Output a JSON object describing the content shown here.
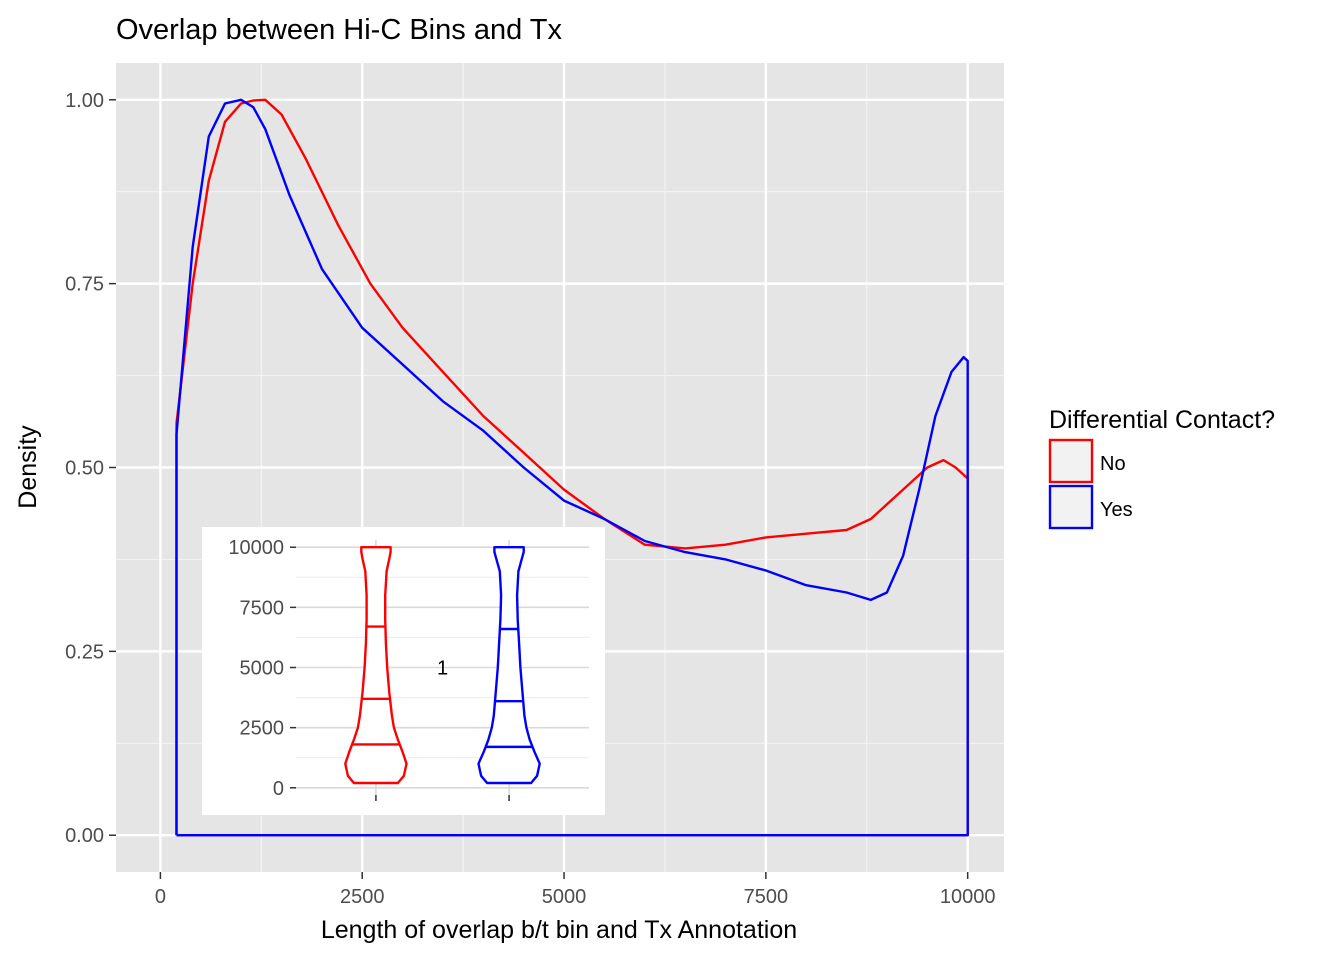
{
  "chart_data": [
    {
      "type": "line",
      "title": "Overlap between Hi-C Bins and Tx",
      "xlabel": "Length of overlap b/t bin and Tx Annotation",
      "ylabel": "Density",
      "xlim": [
        -550,
        10450
      ],
      "ylim": [
        -0.05,
        1.05
      ],
      "x_ticks": [
        0,
        2500,
        5000,
        7500,
        10000
      ],
      "x_tick_labels": [
        "0",
        "2500",
        "5000",
        "7500",
        "10000"
      ],
      "y_ticks": [
        0.0,
        0.25,
        0.5,
        0.75,
        1.0
      ],
      "y_tick_labels": [
        "0.00",
        "0.25",
        "0.50",
        "0.75",
        "1.00"
      ],
      "grid": true,
      "legend": {
        "title": "Differential Contact?",
        "position": "right",
        "entries": [
          {
            "label": "No",
            "color": "#ff0000"
          },
          {
            "label": "Yes",
            "color": "#0000ff"
          }
        ]
      },
      "series": [
        {
          "name": "No",
          "color": "#ff0000",
          "x": [
            200,
            200,
            400,
            600,
            800,
            1000,
            1150,
            1300,
            1500,
            1800,
            2200,
            2600,
            3000,
            3500,
            4000,
            4500,
            5000,
            5500,
            6000,
            6500,
            7000,
            7500,
            8000,
            8500,
            8800,
            9200,
            9500,
            9700,
            9850,
            10000,
            10000,
            200
          ],
          "y": [
            0.0,
            0.56,
            0.75,
            0.89,
            0.97,
            0.995,
            0.999,
            1.0,
            0.98,
            0.92,
            0.83,
            0.75,
            0.69,
            0.63,
            0.57,
            0.52,
            0.47,
            0.43,
            0.395,
            0.39,
            0.395,
            0.405,
            0.41,
            0.415,
            0.43,
            0.47,
            0.5,
            0.51,
            0.5,
            0.485,
            0.0,
            0.0
          ]
        },
        {
          "name": "Yes",
          "color": "#0000ff",
          "x": [
            200,
            200,
            400,
            600,
            800,
            1000,
            1150,
            1300,
            1600,
            2000,
            2500,
            3000,
            3500,
            4000,
            4500,
            5000,
            5500,
            6000,
            6500,
            7000,
            7500,
            8000,
            8500,
            8800,
            9000,
            9200,
            9400,
            9600,
            9800,
            9950,
            10000,
            10000,
            200
          ],
          "y": [
            0.0,
            0.545,
            0.8,
            0.95,
            0.995,
            1.0,
            0.99,
            0.96,
            0.87,
            0.77,
            0.69,
            0.64,
            0.59,
            0.55,
            0.5,
            0.455,
            0.43,
            0.4,
            0.385,
            0.375,
            0.36,
            0.34,
            0.33,
            0.32,
            0.33,
            0.38,
            0.47,
            0.57,
            0.63,
            0.65,
            0.645,
            0.0,
            0.0
          ]
        }
      ]
    },
    {
      "type": "violin",
      "ylim": [
        -300,
        10300
      ],
      "y_ticks": [
        0,
        2500,
        5000,
        7500,
        10000
      ],
      "y_tick_labels": [
        "0",
        "2500",
        "5000",
        "7500",
        "10000"
      ],
      "center_label": "1",
      "violins": [
        {
          "name": "No",
          "color": "#ff0000",
          "y": [
            200,
            500,
            1000,
            1500,
            2000,
            2500,
            3000,
            4000,
            5000,
            6000,
            7000,
            8000,
            9000,
            9500,
            9800,
            10000
          ],
          "half_width": [
            0.33,
            0.42,
            0.46,
            0.4,
            0.33,
            0.27,
            0.24,
            0.2,
            0.17,
            0.15,
            0.14,
            0.14,
            0.16,
            0.2,
            0.22,
            0.22
          ],
          "quantiles": [
            1800,
            3700,
            6700
          ]
        },
        {
          "name": "Yes",
          "color": "#0000ff",
          "y": [
            200,
            500,
            1000,
            1500,
            2000,
            2500,
            3000,
            4000,
            5000,
            6000,
            7000,
            8000,
            9000,
            9500,
            9800,
            10000
          ],
          "half_width": [
            0.33,
            0.42,
            0.46,
            0.38,
            0.31,
            0.26,
            0.23,
            0.2,
            0.17,
            0.15,
            0.13,
            0.12,
            0.14,
            0.19,
            0.22,
            0.22
          ],
          "quantiles": [
            1700,
            3600,
            6600
          ]
        }
      ]
    }
  ]
}
